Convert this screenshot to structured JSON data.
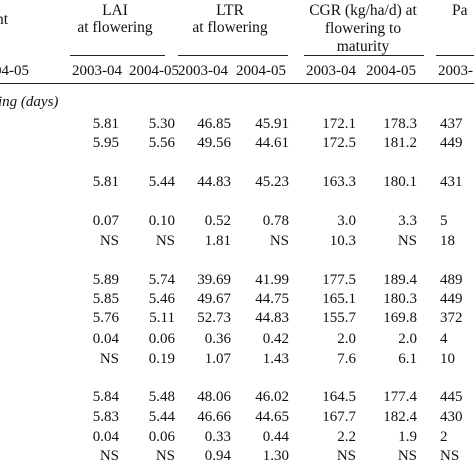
{
  "headers": {
    "col0_fragment": "nt",
    "col0_year_fragment": "04-05",
    "lai": {
      "line1": "LAI",
      "line2": "at flowering"
    },
    "ltr": {
      "line1": "LTR",
      "line2": "at flowering"
    },
    "cgr": {
      "line1": "CGR (kg/ha/d) at",
      "line2": "flowering to",
      "line3": "maturity"
    },
    "pa_fragment": "Pa",
    "years": {
      "y1": "2003-04",
      "y2": "2004-05",
      "pa_year": "2003-"
    }
  },
  "section_label": "ing (days)",
  "rows": [
    {
      "lai1": "5.81",
      "lai2": "5.30",
      "ltr1": "46.85",
      "ltr2": "45.91",
      "cgr1": "172.1",
      "cgr2": "178.3",
      "pa": "437"
    },
    {
      "lai1": "5.95",
      "lai2": "5.56",
      "ltr1": "49.56",
      "ltr2": "44.61",
      "cgr1": "172.5",
      "cgr2": "181.2",
      "pa": "449"
    },
    {
      "lai1": "5.81",
      "lai2": "5.44",
      "ltr1": "44.83",
      "ltr2": "45.23",
      "cgr1": "163.3",
      "cgr2": "180.1",
      "pa": "431"
    },
    {
      "lai1": "0.07",
      "lai2": "0.10",
      "ltr1": "0.52",
      "ltr2": "0.78",
      "cgr1": "3.0",
      "cgr2": "3.3",
      "pa": "5"
    },
    {
      "lai1": "NS",
      "lai2": "NS",
      "ltr1": "1.81",
      "ltr2": "NS",
      "cgr1": "10.3",
      "cgr2": "NS",
      "pa": "18"
    },
    {
      "lai1": "5.89",
      "lai2": "5.74",
      "ltr1": "39.69",
      "ltr2": "41.99",
      "cgr1": "177.5",
      "cgr2": "189.4",
      "pa": "489"
    },
    {
      "lai1": "5.85",
      "lai2": "5.46",
      "ltr1": "49.67",
      "ltr2": "44.75",
      "cgr1": "165.1",
      "cgr2": "180.3",
      "pa": "449"
    },
    {
      "lai1": "5.76",
      "lai2": "5.11",
      "ltr1": "52.73",
      "ltr2": "44.83",
      "cgr1": "155.7",
      "cgr2": "169.8",
      "pa": "372"
    },
    {
      "lai1": "0.04",
      "lai2": "0.06",
      "ltr1": "0.36",
      "ltr2": "0.42",
      "cgr1": "2.0",
      "cgr2": "2.0",
      "pa": "4"
    },
    {
      "lai1": "NS",
      "lai2": "0.19",
      "ltr1": "1.07",
      "ltr2": "1.43",
      "cgr1": "7.6",
      "cgr2": "6.1",
      "pa": "10"
    },
    {
      "lai1": "5.84",
      "lai2": "5.48",
      "ltr1": "48.06",
      "ltr2": "46.02",
      "cgr1": "164.5",
      "cgr2": "177.4",
      "pa": "445"
    },
    {
      "lai1": "5.83",
      "lai2": "5.44",
      "ltr1": "46.66",
      "ltr2": "44.65",
      "cgr1": "167.7",
      "cgr2": "182.4",
      "pa": "430"
    },
    {
      "lai1": "0.04",
      "lai2": "0.06",
      "ltr1": "0.33",
      "ltr2": "0.44",
      "cgr1": "2.2",
      "cgr2": "1.9",
      "pa": "2"
    },
    {
      "lai1": "NS",
      "lai2": "NS",
      "ltr1": "0.94",
      "ltr2": "1.30",
      "cgr1": "NS",
      "cgr2": "NS",
      "pa": "NS"
    }
  ]
}
